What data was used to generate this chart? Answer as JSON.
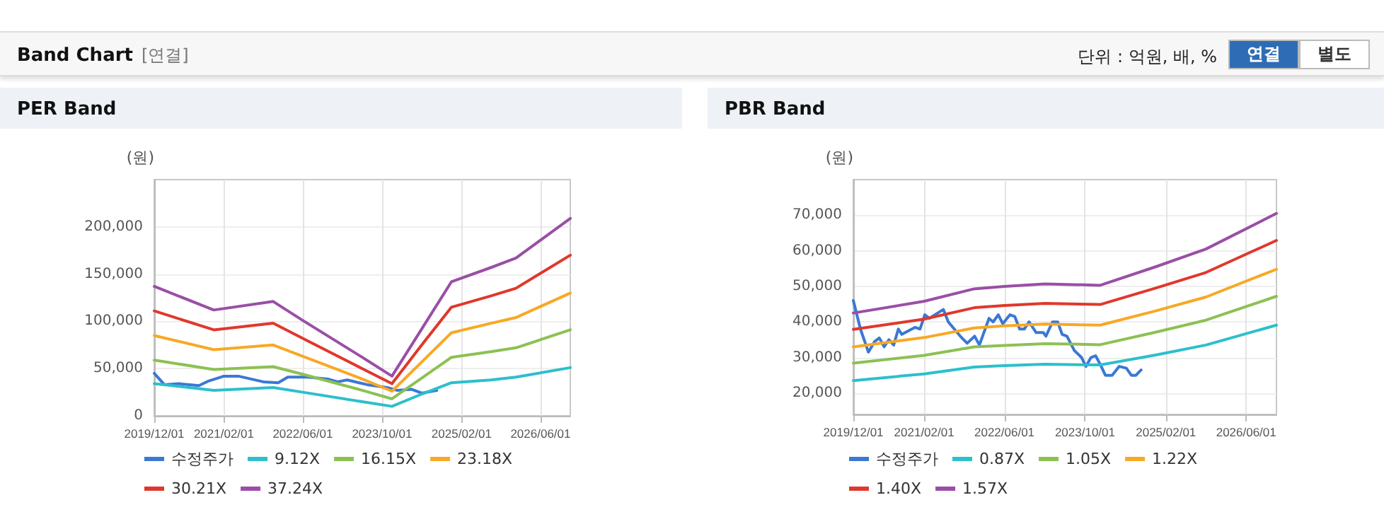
{
  "chart_data": [
    {
      "type": "other",
      "title": "Band Chart",
      "annotations": [
        "[연결]",
        "단위 : 억원, 배, %",
        "연결",
        "별도"
      ]
    },
    {
      "type": "line",
      "title": "PER Band",
      "ylabel": "(원)",
      "x": [
        "2019-12-01",
        "2020-12-01",
        "2021-12-01",
        "2022-06-01",
        "2023-06-01",
        "2023-12-01",
        "2024-06-01",
        "2024-12-01",
        "2025-08-01",
        "2026-01-01",
        "2026-12-01"
      ],
      "xlim": [
        "2019-12-01",
        "2026-12-01"
      ],
      "xticks": [
        {
          "value": "2019-12-01",
          "label": "2019/12/01"
        },
        {
          "value": "2021-02-01",
          "label": "2021/02/01"
        },
        {
          "value": "2022-06-01",
          "label": "2022/06/01"
        },
        {
          "value": "2023-10-01",
          "label": "2023/10/01"
        },
        {
          "value": "2025-02-01",
          "label": "2025/02/01"
        },
        {
          "value": "2026-06-01",
          "label": "2026/06/01"
        }
      ],
      "ylim": [
        0,
        250000
      ],
      "yticks": [
        0,
        {
          "value": 50000,
          "label": "50,000"
        },
        {
          "value": 100000,
          "label": "100,000"
        },
        {
          "value": 150000,
          "label": "150,000"
        },
        {
          "value": 200000,
          "label": "200,000"
        }
      ],
      "grid": true,
      "legend": "bottom",
      "marker": "none",
      "line_style": "solid",
      "series": [
        {
          "name": "수정주가",
          "color": "#3a78d4",
          "x": [
            "2019-12-01",
            "2020-02-01",
            "2020-05-01",
            "2020-09-01",
            "2020-11-01",
            "2021-02-01",
            "2021-05-01",
            "2021-10-01",
            "2022-01-01",
            "2022-03-01",
            "2022-07-01",
            "2022-11-01",
            "2023-01-01",
            "2023-03-01",
            "2023-07-01",
            "2023-11-01",
            "2024-01-01",
            "2024-04-01",
            "2024-06-01",
            "2024-09-01"
          ],
          "values": [
            45000,
            33000,
            34000,
            32000,
            37000,
            42000,
            42000,
            36000,
            35000,
            41000,
            41000,
            39000,
            36000,
            38000,
            33000,
            30000,
            27000,
            28000,
            24000,
            27000
          ]
        },
        {
          "name": "9.12X",
          "color": "#2cbfcc",
          "values": [
            34000,
            27000,
            30000,
            25000,
            15000,
            10000,
            23000,
            35000,
            38000,
            41000,
            51000
          ]
        },
        {
          "name": "16.15X",
          "color": "#8cc152",
          "values": [
            59000,
            49000,
            52000,
            44000,
            27000,
            18000,
            40000,
            62000,
            68000,
            72000,
            91000
          ]
        },
        {
          "name": "23.18X",
          "color": "#f8a825",
          "values": [
            85000,
            70000,
            75000,
            63000,
            39000,
            26000,
            57000,
            88000,
            98000,
            104000,
            130000
          ]
        },
        {
          "name": "30.21X",
          "color": "#e0382c",
          "values": [
            111000,
            91000,
            98000,
            82000,
            50000,
            34000,
            75000,
            115000,
            127000,
            135000,
            170000
          ]
        },
        {
          "name": "37.24X",
          "color": "#9a4ea6",
          "values": [
            137000,
            112000,
            121000,
            101000,
            62000,
            42000,
            92000,
            142000,
            157000,
            167000,
            209000
          ]
        }
      ]
    },
    {
      "type": "line",
      "title": "PBR Band",
      "ylabel": "(원)",
      "x": [
        "2019-12-01",
        "2021-02-01",
        "2021-12-01",
        "2022-06-01",
        "2023-02-01",
        "2024-01-01",
        "2024-12-01",
        "2025-10-01",
        "2026-12-01"
      ],
      "xlim": [
        "2019-12-01",
        "2026-12-01"
      ],
      "xticks": [
        {
          "value": "2019-12-01",
          "label": "2019/12/01"
        },
        {
          "value": "2021-02-01",
          "label": "2021/02/01"
        },
        {
          "value": "2022-06-01",
          "label": "2022/06/01"
        },
        {
          "value": "2023-10-01",
          "label": "2023/10/01"
        },
        {
          "value": "2025-02-01",
          "label": "2025/02/01"
        },
        {
          "value": "2026-06-01",
          "label": "2026/06/01"
        }
      ],
      "ylim": [
        14000,
        80000
      ],
      "yticks": [
        {
          "value": 20000,
          "label": "20,000"
        },
        {
          "value": 30000,
          "label": "30,000"
        },
        {
          "value": 40000,
          "label": "40,000"
        },
        {
          "value": 50000,
          "label": "50,000"
        },
        {
          "value": 60000,
          "label": "60,000"
        },
        {
          "value": 70000,
          "label": "70,000"
        }
      ],
      "grid": true,
      "legend": "bottom",
      "marker": "none",
      "line_style": "solid",
      "series": [
        {
          "name": "수정주가",
          "color": "#3a78d4",
          "x": [
            "2019-12-01",
            "2020-01-13",
            "2020-03-01",
            "2020-04-08",
            "2020-05-06",
            "2020-06-04",
            "2020-07-03",
            "2020-08-01",
            "2020-08-29",
            "2020-09-19",
            "2020-12-09",
            "2021-01-07",
            "2021-02-05",
            "2021-03-04",
            "2021-05-28",
            "2021-06-27",
            "2021-09-07",
            "2021-10-19",
            "2021-12-03",
            "2022-01-01",
            "2022-02-28",
            "2022-03-25",
            "2022-04-25",
            "2022-05-22",
            "2022-07-04",
            "2022-08-03",
            "2022-09-01",
            "2022-09-29",
            "2022-10-28",
            "2022-12-10",
            "2023-01-22",
            "2023-02-07",
            "2023-03-19",
            "2023-04-19",
            "2023-05-16",
            "2023-06-14",
            "2023-07-28",
            "2023-09-10",
            "2023-10-07",
            "2023-11-06",
            "2023-12-04",
            "2024-01-02",
            "2024-02-01",
            "2024-03-13",
            "2024-04-25",
            "2024-06-07",
            "2024-07-07",
            "2024-08-04",
            "2024-09-04"
          ],
          "values": [
            46000,
            38000,
            31500,
            34500,
            35500,
            33000,
            35000,
            33500,
            38000,
            36500,
            38500,
            38000,
            42000,
            41000,
            43500,
            40000,
            36000,
            34000,
            36000,
            33500,
            41000,
            40000,
            42000,
            39500,
            42000,
            41500,
            38000,
            38000,
            40000,
            37000,
            37000,
            36000,
            40000,
            40000,
            36500,
            36000,
            32000,
            30000,
            27500,
            30000,
            30500,
            28000,
            25000,
            25000,
            27500,
            27000,
            25000,
            25000,
            26500
          ]
        },
        {
          "name": "0.87X",
          "color": "#2cbfcc",
          "values": [
            23500,
            25400,
            27300,
            27700,
            28100,
            27900,
            30700,
            33500,
            39100
          ]
        },
        {
          "name": "1.05X",
          "color": "#8cc152",
          "values": [
            28400,
            30600,
            33000,
            33400,
            33900,
            33600,
            37100,
            40500,
            47200
          ]
        },
        {
          "name": "1.22X",
          "color": "#f8a825",
          "values": [
            33000,
            35600,
            38300,
            38900,
            39400,
            39100,
            43100,
            47000,
            54800
          ]
        },
        {
          "name": "1.40X",
          "color": "#e0382c",
          "values": [
            37900,
            40800,
            44000,
            44600,
            45200,
            44900,
            49500,
            53900,
            62900
          ]
        },
        {
          "name": "1.57X",
          "color": "#9a4ea6",
          "values": [
            42500,
            45800,
            49300,
            50000,
            50700,
            50300,
            55500,
            60500,
            70500
          ]
        }
      ]
    }
  ]
}
